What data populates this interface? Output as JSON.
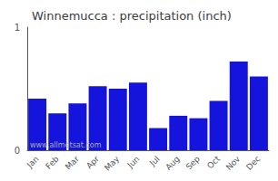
{
  "chart_data": {
    "type": "bar",
    "title": "Winnemucca : precipitation (inch)",
    "categories": [
      "Jan",
      "Feb",
      "Mar",
      "Apr",
      "May",
      "Jun",
      "Jul",
      "Aug",
      "Sep",
      "Oct",
      "Nov",
      "Dec"
    ],
    "values": [
      0.42,
      0.3,
      0.38,
      0.52,
      0.5,
      0.55,
      0.18,
      0.28,
      0.26,
      0.4,
      0.72,
      0.6
    ],
    "color": "#1414dd",
    "ylim": [
      0,
      1
    ],
    "yticks": [
      0,
      1
    ],
    "grid": false,
    "annotation": "www.allmetsat.com"
  }
}
